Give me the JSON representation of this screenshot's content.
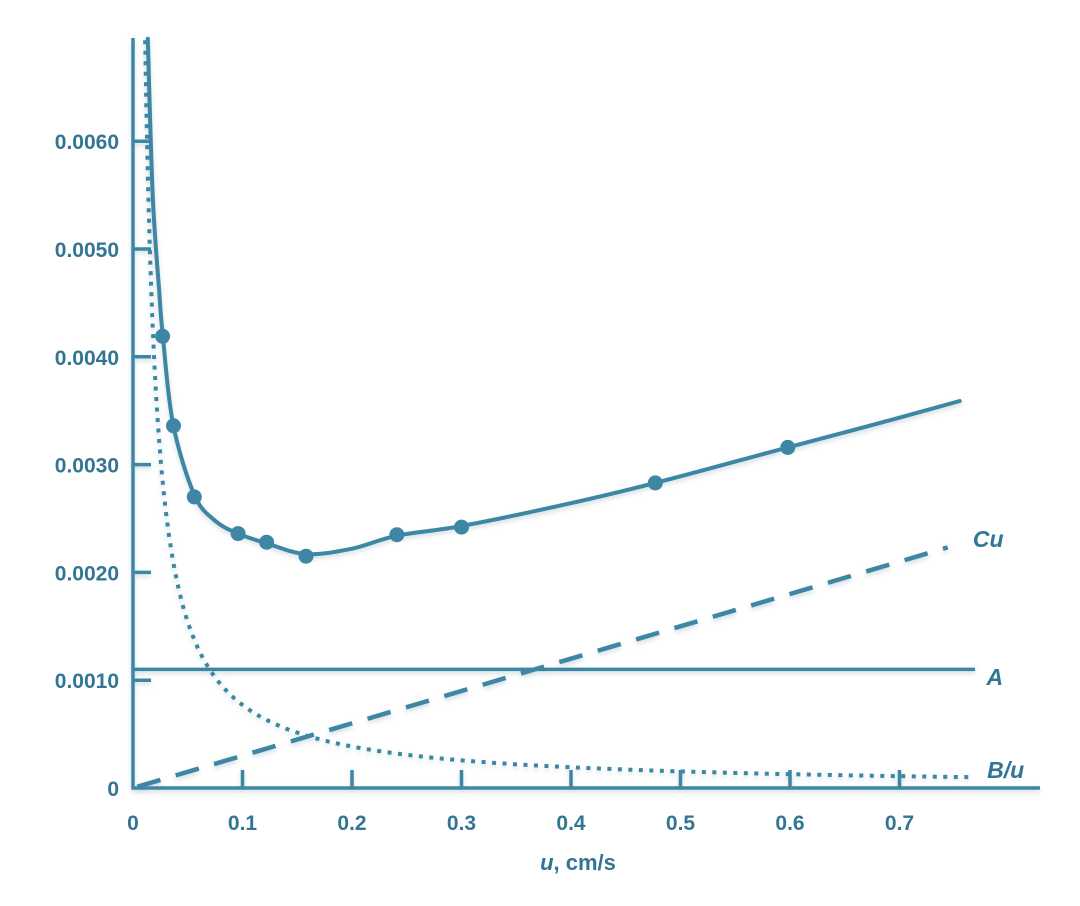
{
  "chart_data": {
    "type": "line",
    "title": "",
    "xlabel": "u, cm/s",
    "xlabel_parts": {
      "var": "u",
      "rest": ", cm/s"
    },
    "ylabel": "",
    "xlim": [
      0,
      0.828
    ],
    "ylim": [
      0,
      0.00695
    ],
    "grid": false,
    "legend_position": "inline-right-of-curves",
    "accent_color": "#3e86a4",
    "text_color": "#337595",
    "xticks": [
      {
        "value": 0.0,
        "label": "0"
      },
      {
        "value": 0.1,
        "label": "0.1"
      },
      {
        "value": 0.2,
        "label": "0.2"
      },
      {
        "value": 0.3,
        "label": "0.3"
      },
      {
        "value": 0.4,
        "label": "0.4"
      },
      {
        "value": 0.5,
        "label": "0.5"
      },
      {
        "value": 0.6,
        "label": "0.6"
      },
      {
        "value": 0.7,
        "label": "0.7"
      }
    ],
    "yticks": [
      {
        "value": 0.0,
        "label": "0"
      },
      {
        "value": 0.001,
        "label": "0.0010"
      },
      {
        "value": 0.002,
        "label": "0.0020"
      },
      {
        "value": 0.003,
        "label": "0.0030"
      },
      {
        "value": 0.004,
        "label": "0.0040"
      },
      {
        "value": 0.005,
        "label": "0.0050"
      },
      {
        "value": 0.006,
        "label": "0.0060"
      }
    ],
    "series": [
      {
        "name": "observed-plate-height-points",
        "kind": "scatter",
        "points": [
          [
            0.027,
            0.00419
          ],
          [
            0.037,
            0.00336
          ],
          [
            0.056,
            0.0027
          ],
          [
            0.096,
            0.00236
          ],
          [
            0.122,
            0.00228
          ],
          [
            0.158,
            0.00215
          ],
          [
            0.241,
            0.00235
          ],
          [
            0.3,
            0.00242
          ],
          [
            0.477,
            0.00283
          ],
          [
            0.598,
            0.00316
          ]
        ]
      },
      {
        "name": "total-plate-height-curve",
        "kind": "spline",
        "style": "solid",
        "points": [
          [
            0.0135,
            0.00695
          ],
          [
            0.018,
            0.0055
          ],
          [
            0.024,
            0.0046
          ],
          [
            0.027,
            0.00422
          ],
          [
            0.0365,
            0.00338
          ],
          [
            0.056,
            0.00272
          ],
          [
            0.075,
            0.00248
          ],
          [
            0.096,
            0.00236
          ],
          [
            0.122,
            0.00227
          ],
          [
            0.158,
            0.00217
          ],
          [
            0.2,
            0.00222
          ],
          [
            0.241,
            0.00234
          ],
          [
            0.3,
            0.00243
          ],
          [
            0.39,
            0.00262
          ],
          [
            0.477,
            0.00283
          ],
          [
            0.598,
            0.00316
          ],
          [
            0.68,
            0.00338
          ],
          [
            0.755,
            0.00359
          ]
        ]
      },
      {
        "name": "A-term-line",
        "kind": "hline",
        "style": "solid",
        "label": "A",
        "value": 0.0011,
        "x_range": [
          0.0,
          0.769
        ],
        "label_pos": [
          0.787,
          0.00103
        ]
      },
      {
        "name": "Cu-term-line",
        "kind": "linear",
        "style": "dashed",
        "label": "Cu",
        "slope": 0.003,
        "x_range": [
          0.004,
          0.744
        ],
        "label_pos": [
          0.781,
          0.00231
        ]
      },
      {
        "name": "B-over-u-term-curve",
        "kind": "inverse",
        "style": "dotted",
        "label": "B/u",
        "B": 7.7e-05,
        "x_range": [
          0.0111,
          0.764
        ],
        "label_pos": [
          0.797,
          0.000168
        ]
      }
    ]
  }
}
